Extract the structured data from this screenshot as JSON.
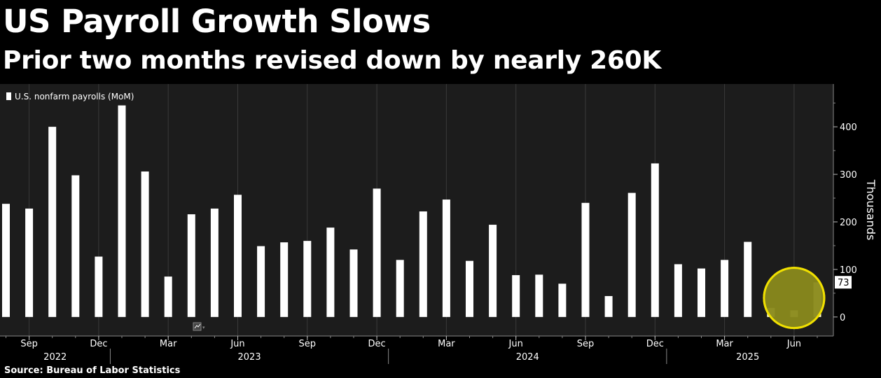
{
  "header": {
    "title": "US Payroll Growth Slows",
    "subtitle": "Prior two months revised down by nearly 260K"
  },
  "footer": {
    "source": "Source: Bureau of Labor Statistics"
  },
  "colors": {
    "background": "#000000",
    "plot_background": "#1c1c1c",
    "bar": "#ffffff",
    "bar_highlight": "#ffffcc",
    "highlight_fill": "#8a8a1c",
    "highlight_stroke": "#f0e000",
    "grid": "#3a3a3a"
  },
  "chart_data": {
    "type": "bar",
    "title": "US Payroll Growth Slows",
    "subtitle": "Prior two months revised down by nearly 260K",
    "source": "Source: Bureau of Labor Statistics",
    "legend": {
      "label": "U.S. nonfarm payrolls (MoM)",
      "placement": "top-left"
    },
    "ylabel": "Thousands",
    "ylim": [
      -40,
      490
    ],
    "yticks": [
      0,
      100,
      200,
      300,
      400
    ],
    "grid": true,
    "x": [
      "2022-08",
      "2022-09",
      "2022-10",
      "2022-11",
      "2022-12",
      "2023-01",
      "2023-02",
      "2023-03",
      "2023-04",
      "2023-05",
      "2023-06",
      "2023-07",
      "2023-08",
      "2023-09",
      "2023-10",
      "2023-11",
      "2023-12",
      "2024-01",
      "2024-02",
      "2024-03",
      "2024-04",
      "2024-05",
      "2024-06",
      "2024-07",
      "2024-08",
      "2024-09",
      "2024-10",
      "2024-11",
      "2024-12",
      "2025-01",
      "2025-02",
      "2025-03",
      "2025-04",
      "2025-05",
      "2025-06",
      "2025-07"
    ],
    "series": [
      {
        "name": "U.S. nonfarm payrolls (MoM)",
        "values": [
          238,
          228,
          400,
          298,
          127,
          445,
          306,
          85,
          216,
          228,
          257,
          149,
          157,
          160,
          188,
          142,
          270,
          120,
          222,
          247,
          118,
          194,
          88,
          89,
          70,
          240,
          44,
          261,
          323,
          111,
          102,
          120,
          158,
          19,
          14,
          73
        ]
      }
    ],
    "month_ticks": [
      {
        "label": "Sep",
        "index": 1
      },
      {
        "label": "Dec",
        "index": 4
      },
      {
        "label": "Mar",
        "index": 7
      },
      {
        "label": "Jun",
        "index": 10
      },
      {
        "label": "Sep",
        "index": 13
      },
      {
        "label": "Dec",
        "index": 16
      },
      {
        "label": "Mar",
        "index": 19
      },
      {
        "label": "Jun",
        "index": 22
      },
      {
        "label": "Sep",
        "index": 25
      },
      {
        "label": "Dec",
        "index": 28
      },
      {
        "label": "Mar",
        "index": 31
      },
      {
        "label": "Jun",
        "index": 34
      }
    ],
    "year_labels": [
      {
        "label": "2022",
        "start": 0,
        "end": 4
      },
      {
        "label": "2023",
        "start": 5,
        "end": 16
      },
      {
        "label": "2024",
        "start": 17,
        "end": 28
      },
      {
        "label": "2025",
        "start": 29,
        "end": 35
      }
    ],
    "last_value_label": "73",
    "highlight": {
      "shape": "circle",
      "from_index": 33,
      "to_index": 35
    }
  }
}
